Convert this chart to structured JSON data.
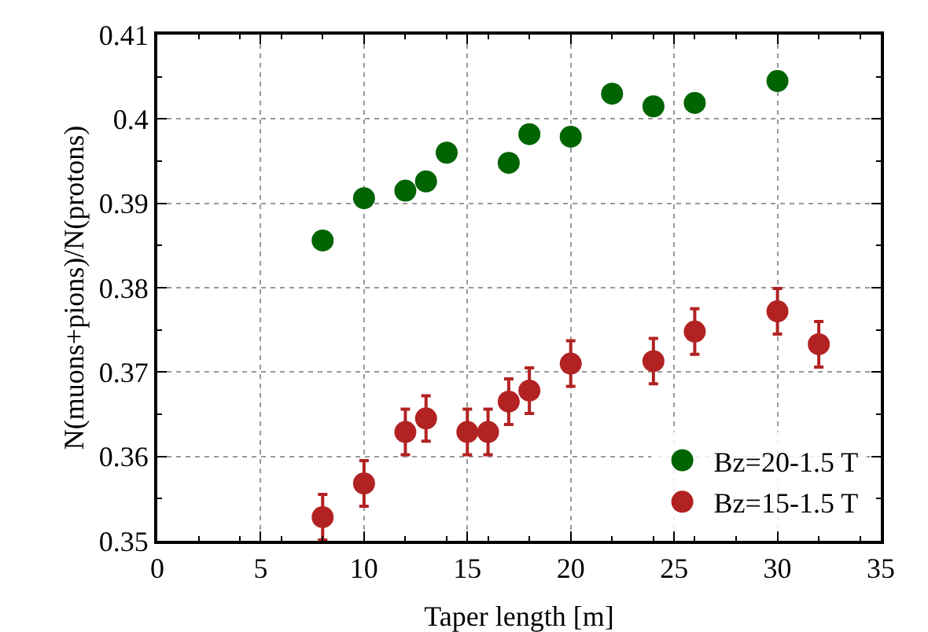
{
  "chart_data": {
    "type": "scatter",
    "xlabel": "Taper length [m]",
    "ylabel": "N(muons+pions)/N(protons)",
    "xlim": [
      0,
      35
    ],
    "xticks": [
      0,
      5,
      10,
      15,
      20,
      25,
      30,
      35
    ],
    "ylim": [
      0.35,
      0.41
    ],
    "yticks": [
      0.35,
      0.36,
      0.37,
      0.38,
      0.39,
      0.4,
      0.41
    ],
    "grid": true,
    "legend": "bottom right",
    "marker": "circle",
    "series": [
      {
        "name": "Bz=20-1.5 T",
        "color": "#006400",
        "x": [
          8,
          10,
          12,
          13,
          14,
          17,
          18,
          20,
          22,
          24,
          26,
          30
        ],
        "values": [
          0.3856,
          0.3906,
          0.3915,
          0.3926,
          0.396,
          0.3948,
          0.3982,
          0.3979,
          0.403,
          0.4015,
          0.4019,
          0.4045
        ]
      },
      {
        "name": "Bz=15-1.5 T",
        "color": "#b22222",
        "x": [
          8,
          10,
          12,
          13,
          15,
          16,
          17,
          18,
          20,
          24,
          26,
          30,
          32
        ],
        "values": [
          0.3528,
          0.3568,
          0.3629,
          0.3645,
          0.3629,
          0.3629,
          0.3665,
          0.3678,
          0.371,
          0.3713,
          0.3748,
          0.3772,
          0.3733
        ],
        "errors": [
          0.0027,
          0.0027,
          0.0027,
          0.0027,
          0.0027,
          0.0027,
          0.0027,
          0.0027,
          0.0027,
          0.0027,
          0.0027,
          0.0027,
          0.0027
        ]
      }
    ]
  }
}
